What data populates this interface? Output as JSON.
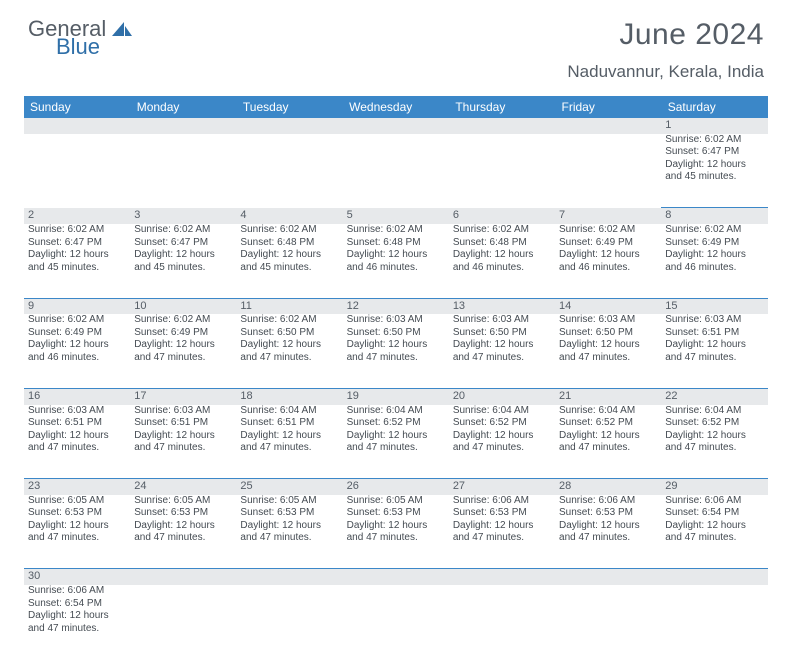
{
  "logo": {
    "text1": "General",
    "text2": "Blue",
    "text_color": "#555d66",
    "accent_color": "#2f6fa8"
  },
  "title": {
    "month": "June 2024",
    "location": "Naduvannur, Kerala, India"
  },
  "style": {
    "header_bg": "#3b87c8",
    "header_text": "#ffffff",
    "daynum_bg": "#e7e9eb",
    "cell_border": "#3b87c8",
    "body_text": "#444b52",
    "font_title": 30,
    "font_subtitle": 17,
    "font_weekday": 12,
    "font_daynum": 11,
    "font_cell": 10
  },
  "weekdays": [
    "Sunday",
    "Monday",
    "Tuesday",
    "Wednesday",
    "Thursday",
    "Friday",
    "Saturday"
  ],
  "weeks": [
    [
      null,
      null,
      null,
      null,
      null,
      null,
      {
        "d": "1",
        "sr": "6:02 AM",
        "ss": "6:47 PM",
        "dl": "12 hours and 45 minutes."
      }
    ],
    [
      {
        "d": "2",
        "sr": "6:02 AM",
        "ss": "6:47 PM",
        "dl": "12 hours and 45 minutes."
      },
      {
        "d": "3",
        "sr": "6:02 AM",
        "ss": "6:47 PM",
        "dl": "12 hours and 45 minutes."
      },
      {
        "d": "4",
        "sr": "6:02 AM",
        "ss": "6:48 PM",
        "dl": "12 hours and 45 minutes."
      },
      {
        "d": "5",
        "sr": "6:02 AM",
        "ss": "6:48 PM",
        "dl": "12 hours and 46 minutes."
      },
      {
        "d": "6",
        "sr": "6:02 AM",
        "ss": "6:48 PM",
        "dl": "12 hours and 46 minutes."
      },
      {
        "d": "7",
        "sr": "6:02 AM",
        "ss": "6:49 PM",
        "dl": "12 hours and 46 minutes."
      },
      {
        "d": "8",
        "sr": "6:02 AM",
        "ss": "6:49 PM",
        "dl": "12 hours and 46 minutes."
      }
    ],
    [
      {
        "d": "9",
        "sr": "6:02 AM",
        "ss": "6:49 PM",
        "dl": "12 hours and 46 minutes."
      },
      {
        "d": "10",
        "sr": "6:02 AM",
        "ss": "6:49 PM",
        "dl": "12 hours and 47 minutes."
      },
      {
        "d": "11",
        "sr": "6:02 AM",
        "ss": "6:50 PM",
        "dl": "12 hours and 47 minutes."
      },
      {
        "d": "12",
        "sr": "6:03 AM",
        "ss": "6:50 PM",
        "dl": "12 hours and 47 minutes."
      },
      {
        "d": "13",
        "sr": "6:03 AM",
        "ss": "6:50 PM",
        "dl": "12 hours and 47 minutes."
      },
      {
        "d": "14",
        "sr": "6:03 AM",
        "ss": "6:50 PM",
        "dl": "12 hours and 47 minutes."
      },
      {
        "d": "15",
        "sr": "6:03 AM",
        "ss": "6:51 PM",
        "dl": "12 hours and 47 minutes."
      }
    ],
    [
      {
        "d": "16",
        "sr": "6:03 AM",
        "ss": "6:51 PM",
        "dl": "12 hours and 47 minutes."
      },
      {
        "d": "17",
        "sr": "6:03 AM",
        "ss": "6:51 PM",
        "dl": "12 hours and 47 minutes."
      },
      {
        "d": "18",
        "sr": "6:04 AM",
        "ss": "6:51 PM",
        "dl": "12 hours and 47 minutes."
      },
      {
        "d": "19",
        "sr": "6:04 AM",
        "ss": "6:52 PM",
        "dl": "12 hours and 47 minutes."
      },
      {
        "d": "20",
        "sr": "6:04 AM",
        "ss": "6:52 PM",
        "dl": "12 hours and 47 minutes."
      },
      {
        "d": "21",
        "sr": "6:04 AM",
        "ss": "6:52 PM",
        "dl": "12 hours and 47 minutes."
      },
      {
        "d": "22",
        "sr": "6:04 AM",
        "ss": "6:52 PM",
        "dl": "12 hours and 47 minutes."
      }
    ],
    [
      {
        "d": "23",
        "sr": "6:05 AM",
        "ss": "6:53 PM",
        "dl": "12 hours and 47 minutes."
      },
      {
        "d": "24",
        "sr": "6:05 AM",
        "ss": "6:53 PM",
        "dl": "12 hours and 47 minutes."
      },
      {
        "d": "25",
        "sr": "6:05 AM",
        "ss": "6:53 PM",
        "dl": "12 hours and 47 minutes."
      },
      {
        "d": "26",
        "sr": "6:05 AM",
        "ss": "6:53 PM",
        "dl": "12 hours and 47 minutes."
      },
      {
        "d": "27",
        "sr": "6:06 AM",
        "ss": "6:53 PM",
        "dl": "12 hours and 47 minutes."
      },
      {
        "d": "28",
        "sr": "6:06 AM",
        "ss": "6:53 PM",
        "dl": "12 hours and 47 minutes."
      },
      {
        "d": "29",
        "sr": "6:06 AM",
        "ss": "6:54 PM",
        "dl": "12 hours and 47 minutes."
      }
    ],
    [
      {
        "d": "30",
        "sr": "6:06 AM",
        "ss": "6:54 PM",
        "dl": "12 hours and 47 minutes."
      },
      null,
      null,
      null,
      null,
      null,
      null
    ]
  ],
  "labels": {
    "sunrise": "Sunrise:",
    "sunset": "Sunset:",
    "daylight": "Daylight:"
  }
}
